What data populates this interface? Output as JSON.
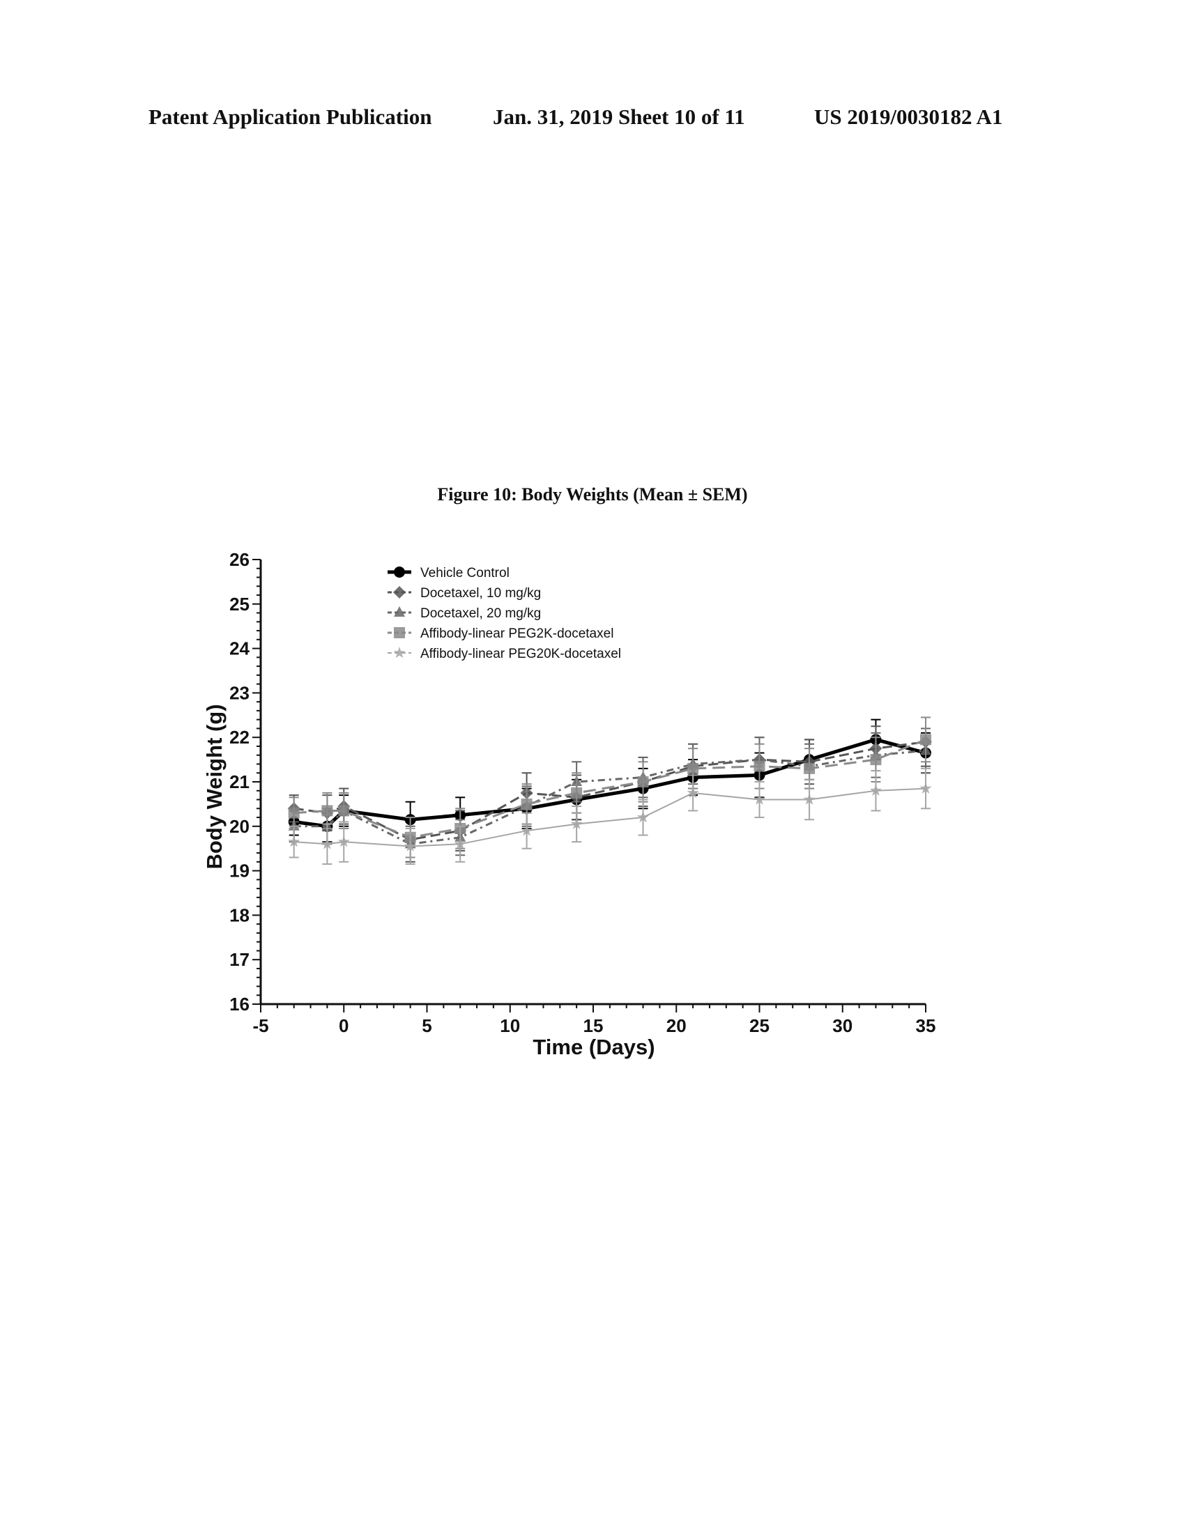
{
  "header": {
    "publication": "Patent Application Publication",
    "date_sheet": "Jan. 31, 2019  Sheet 10 of 11",
    "number": "US 2019/0030182 A1"
  },
  "chart_data": {
    "type": "line",
    "title": "Figure 10: Body Weights (Mean ± SEM)",
    "xlabel": "Time (Days)",
    "ylabel": "Body Weight (g)",
    "xlim": [
      -5,
      35
    ],
    "ylim": [
      16,
      26
    ],
    "xticks": [
      -5,
      0,
      5,
      10,
      15,
      20,
      25,
      30,
      35
    ],
    "yticks": [
      16,
      17,
      18,
      19,
      20,
      21,
      22,
      23,
      24,
      25,
      26
    ],
    "legend_position": "top-left",
    "x": [
      -3,
      -1,
      0,
      4,
      7,
      11,
      14,
      18,
      21,
      25,
      28,
      32,
      35
    ],
    "series": [
      {
        "name": "Vehicle Control",
        "values": [
          20.1,
          20.0,
          20.35,
          20.15,
          20.25,
          20.4,
          20.6,
          20.85,
          21.1,
          21.15,
          21.5,
          21.95,
          21.65
        ],
        "errors": [
          0.3,
          0.35,
          0.35,
          0.4,
          0.4,
          0.45,
          0.45,
          0.45,
          0.4,
          0.5,
          0.45,
          0.45,
          0.45
        ],
        "color": "#000000"
      },
      {
        "name": "Docetaxel, 10 mg/kg",
        "values": [
          20.4,
          20.3,
          20.45,
          19.7,
          19.9,
          20.75,
          20.65,
          21.0,
          21.35,
          21.5,
          21.45,
          21.75,
          21.9
        ],
        "errors": [
          0.3,
          0.4,
          0.4,
          0.5,
          0.45,
          0.45,
          0.5,
          0.55,
          0.5,
          0.5,
          0.5,
          0.5,
          0.55
        ],
        "color": "#555555"
      },
      {
        "name": "Docetaxel, 20 mg/kg",
        "values": [
          20.0,
          20.0,
          20.35,
          19.6,
          19.75,
          20.45,
          21.0,
          21.1,
          21.4,
          21.5,
          21.35,
          21.6,
          21.7
        ],
        "errors": [
          0.35,
          0.4,
          0.4,
          0.4,
          0.4,
          0.45,
          0.45,
          0.45,
          0.45,
          0.5,
          0.5,
          0.5,
          0.5
        ],
        "color": "#666666"
      },
      {
        "name": "Affibody-linear PEG2K-docetaxel",
        "values": [
          20.3,
          20.35,
          20.35,
          19.75,
          19.95,
          20.5,
          20.75,
          21.0,
          21.3,
          21.35,
          21.3,
          21.5,
          21.95
        ],
        "errors": [
          0.35,
          0.4,
          0.4,
          0.45,
          0.45,
          0.45,
          0.45,
          0.45,
          0.45,
          0.5,
          0.45,
          0.5,
          0.5
        ],
        "color": "#8a8a8a"
      },
      {
        "name": "Affibody-linear PEG20K-docetaxel",
        "values": [
          19.65,
          19.6,
          19.65,
          19.55,
          19.6,
          19.9,
          20.05,
          20.2,
          20.75,
          20.6,
          20.6,
          20.8,
          20.85
        ],
        "errors": [
          0.35,
          0.45,
          0.45,
          0.4,
          0.4,
          0.4,
          0.4,
          0.4,
          0.4,
          0.4,
          0.45,
          0.45,
          0.45
        ],
        "color": "#a5a5a5"
      }
    ]
  }
}
